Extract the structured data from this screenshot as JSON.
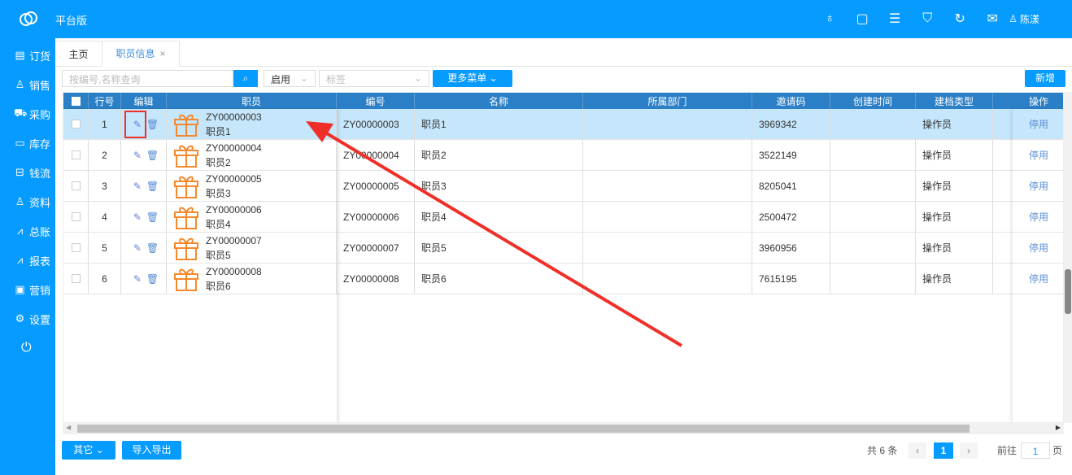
{
  "header": {
    "brand": "平台版",
    "user": "陈漾",
    "icons": [
      "bulb-icon",
      "square-smile-icon",
      "menu-icon",
      "shirt-icon",
      "refresh-icon",
      "mail-icon"
    ]
  },
  "sidebar": {
    "items": [
      {
        "label": "订货",
        "icon": "clipboard-icon",
        "g": "▤"
      },
      {
        "label": "销售",
        "icon": "user-icon",
        "g": "♙"
      },
      {
        "label": "采购",
        "icon": "cart-icon",
        "g": "⛟"
      },
      {
        "label": "库存",
        "icon": "box-icon",
        "g": "▭"
      },
      {
        "label": "钱流",
        "icon": "wallet-icon",
        "g": "⊟"
      },
      {
        "label": "资料",
        "icon": "users-icon",
        "g": "♙"
      },
      {
        "label": "总账",
        "icon": "chart-icon",
        "g": "⩘"
      },
      {
        "label": "报表",
        "icon": "chart-icon",
        "g": "⩘"
      },
      {
        "label": "营销",
        "icon": "monitor-icon",
        "g": "▣"
      },
      {
        "label": "设置",
        "icon": "gear-icon",
        "g": "⚙"
      }
    ]
  },
  "tabs": {
    "home": "主页",
    "active": "职员信息",
    "close": "×"
  },
  "toolbar": {
    "search_placeholder": "按编号,名称查询",
    "status": "启用",
    "tag_placeholder": "标签",
    "more": "更多菜单",
    "add": "新增"
  },
  "table": {
    "headers": [
      "行号",
      "编辑",
      "职员",
      "编号",
      "名称",
      "所属部门",
      "邀请码",
      "创建时间",
      "建档类型",
      "操作"
    ],
    "rows": [
      {
        "no": "1",
        "code": "ZY00000003",
        "name": "职员1",
        "dept": "",
        "invite": "3969342",
        "created": "",
        "type": "操作员",
        "op": "停用"
      },
      {
        "no": "2",
        "code": "ZY00000004",
        "name": "职员2",
        "dept": "",
        "invite": "3522149",
        "created": "",
        "type": "操作员",
        "op": "停用"
      },
      {
        "no": "3",
        "code": "ZY00000005",
        "name": "职员3",
        "dept": "",
        "invite": "8205041",
        "created": "",
        "type": "操作员",
        "op": "停用"
      },
      {
        "no": "4",
        "code": "ZY00000006",
        "name": "职员4",
        "dept": "",
        "invite": "2500472",
        "created": "",
        "type": "操作员",
        "op": "停用"
      },
      {
        "no": "5",
        "code": "ZY00000007",
        "name": "职员5",
        "dept": "",
        "invite": "3960956",
        "created": "",
        "type": "操作员",
        "op": "停用"
      },
      {
        "no": "6",
        "code": "ZY00000008",
        "name": "职员6",
        "dept": "",
        "invite": "7615195",
        "created": "",
        "type": "操作员",
        "op": "停用"
      }
    ]
  },
  "footer": {
    "other": "其它",
    "import_export": "导入导出",
    "total": "共 6 条",
    "page": "1",
    "goto": "前往",
    "goto_value": "1",
    "page_unit": "页"
  },
  "colors": {
    "primary": "#069bff",
    "header": "#2b7fc6",
    "selected": "#c5e6fb",
    "annotation": "#f03028"
  }
}
